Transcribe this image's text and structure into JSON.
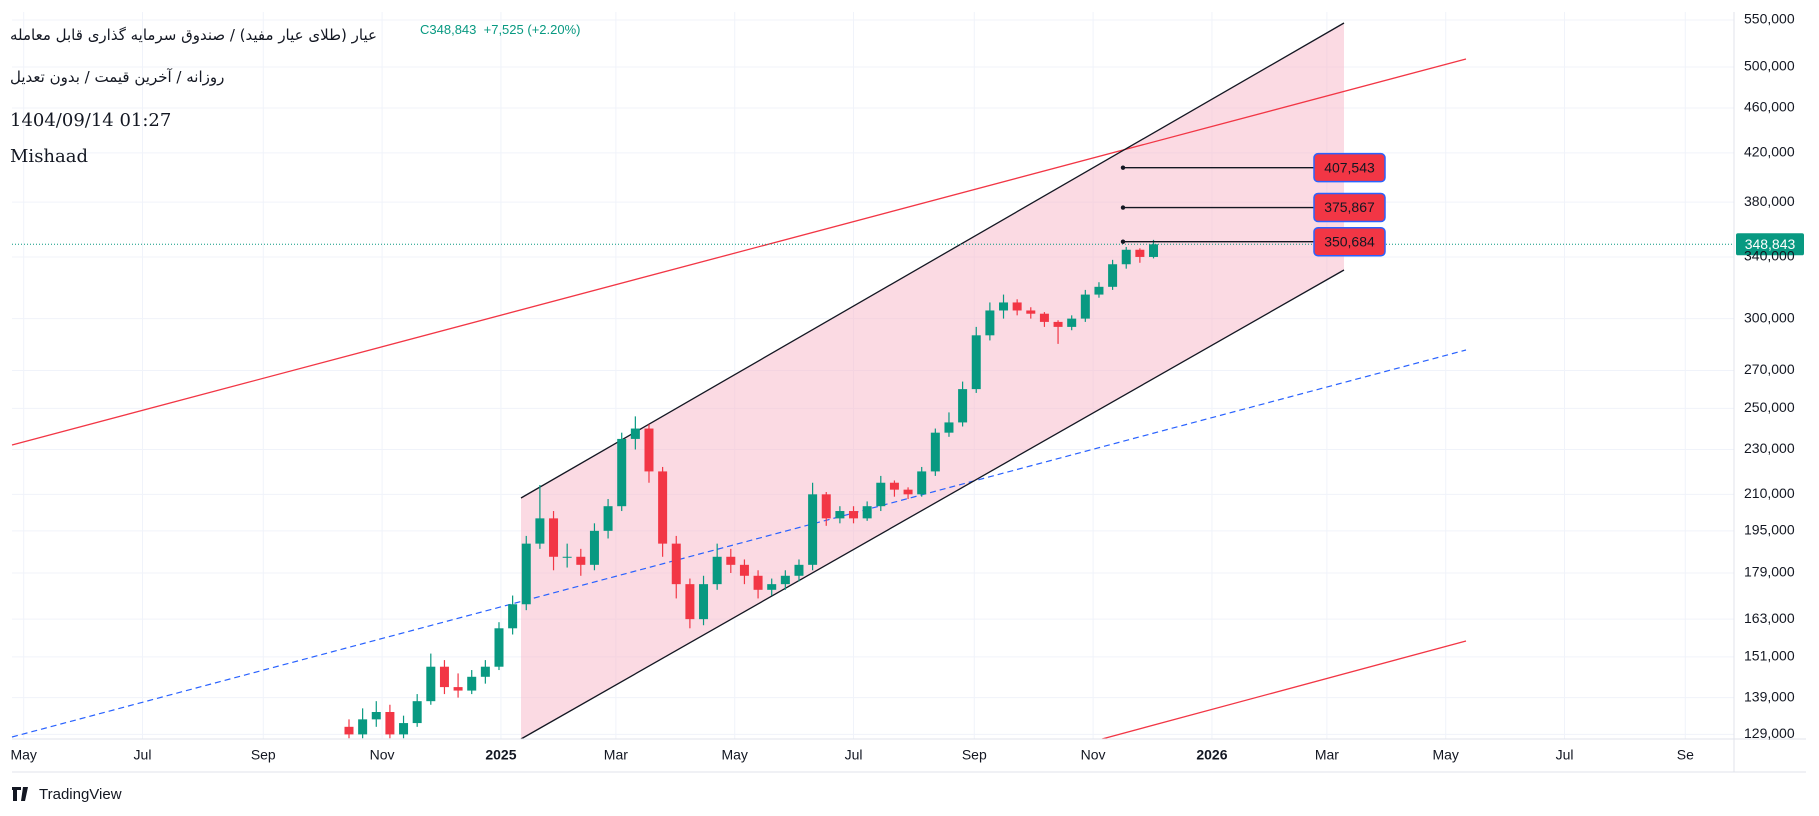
{
  "header": {
    "title": "عیار (طلای عیار مفید) / صندوق سرمایه گذاری قابل معامله",
    "close": "C348,843",
    "change": "+7,525 (+2.20%)",
    "settings": "روزانه / آخرین قیمت / بدون تعدیل",
    "timestamp": "1404/09/14 01:27",
    "author": "Mishaad"
  },
  "chart_data": {
    "type": "candlestick",
    "x": [
      167,
      174,
      181,
      188,
      195,
      202,
      209,
      216,
      223,
      230,
      237,
      244,
      251,
      258,
      265,
      272,
      279,
      286,
      293,
      300,
      307,
      314,
      321,
      328,
      335,
      342,
      349,
      356,
      363,
      370,
      377,
      384,
      391,
      398,
      405,
      412,
      419,
      426,
      433,
      440,
      447,
      454,
      461,
      468,
      475,
      482,
      489,
      496,
      503,
      510,
      517,
      524,
      531,
      538,
      545,
      552,
      559,
      566,
      573,
      580
    ],
    "open": [
      131000,
      129000,
      133000,
      135000,
      129000,
      132000,
      138000,
      148000,
      142000,
      141000,
      145000,
      148000,
      160000,
      168000,
      190000,
      200000,
      185000,
      185000,
      182000,
      195000,
      205000,
      235000,
      240000,
      220000,
      190000,
      175000,
      163000,
      175000,
      185000,
      182000,
      178000,
      173000,
      175000,
      178000,
      182000,
      210000,
      200000,
      203000,
      200000,
      205000,
      215000,
      212000,
      210000,
      220000,
      238000,
      243000,
      260000,
      290000,
      305000,
      310000,
      305000,
      303000,
      298000,
      295000,
      300000,
      315000,
      320000,
      335000,
      345000,
      340000
    ],
    "high": [
      133000,
      136000,
      138000,
      137000,
      134000,
      140000,
      152000,
      150000,
      146000,
      147000,
      150000,
      162000,
      171000,
      193000,
      214000,
      203000,
      190000,
      188000,
      198000,
      208000,
      238000,
      246000,
      242000,
      222000,
      193000,
      177000,
      178000,
      190000,
      188000,
      184000,
      180000,
      177000,
      180000,
      184000,
      215000,
      211000,
      205000,
      205000,
      207000,
      218000,
      216000,
      213000,
      222000,
      240000,
      248000,
      264000,
      295000,
      310000,
      315000,
      312000,
      307000,
      304000,
      299000,
      302000,
      318000,
      323000,
      338000,
      347000,
      346000,
      352000
    ],
    "low": [
      128000,
      128000,
      131000,
      128000,
      128000,
      131000,
      137000,
      140000,
      139000,
      140000,
      143000,
      147000,
      158000,
      166000,
      188000,
      180000,
      181000,
      178000,
      180000,
      192000,
      203000,
      230000,
      215000,
      185000,
      170000,
      160000,
      161000,
      173000,
      179000,
      175000,
      170000,
      171000,
      173000,
      176000,
      180000,
      197000,
      198000,
      198000,
      199000,
      203000,
      209000,
      208000,
      209000,
      218000,
      236000,
      241000,
      258000,
      287000,
      300000,
      302000,
      300000,
      295000,
      285000,
      293000,
      298000,
      313000,
      318000,
      332000,
      336000,
      339000
    ],
    "close": [
      129000,
      133000,
      135000,
      129000,
      132000,
      138000,
      148000,
      142000,
      141000,
      145000,
      148000,
      160000,
      168000,
      190000,
      200000,
      185000,
      185000,
      182000,
      195000,
      205000,
      235000,
      240000,
      220000,
      190000,
      175000,
      163000,
      175000,
      185000,
      182000,
      178000,
      173000,
      175000,
      178000,
      182000,
      210000,
      200000,
      203000,
      200000,
      205000,
      215000,
      212000,
      210000,
      220000,
      238000,
      243000,
      260000,
      290000,
      305000,
      310000,
      305000,
      303000,
      298000,
      295000,
      300000,
      315000,
      320000,
      335000,
      345000,
      340000,
      348843
    ],
    "up_color": "#089981",
    "down_color": "#f23645",
    "xlim": [
      -6,
      878
    ],
    "xticks": [
      {
        "value": 0,
        "label": "May"
      },
      {
        "value": 61,
        "label": "Jul"
      },
      {
        "value": 123,
        "label": "Sep"
      },
      {
        "value": 184,
        "label": "Nov"
      },
      {
        "value": 245,
        "label": "2025"
      },
      {
        "value": 304,
        "label": "Mar"
      },
      {
        "value": 365,
        "label": "May"
      },
      {
        "value": 426,
        "label": "Jul"
      },
      {
        "value": 488,
        "label": "Sep"
      },
      {
        "value": 549,
        "label": "Nov"
      },
      {
        "value": 610,
        "label": "2026"
      },
      {
        "value": 669,
        "label": "Mar"
      },
      {
        "value": 730,
        "label": "May"
      },
      {
        "value": 791,
        "label": "Jul"
      },
      {
        "value": 853,
        "label": "Se"
      }
    ],
    "ylim": [
      127800,
      559000
    ],
    "log_scale": true,
    "grid": true,
    "yticks": [
      {
        "value": 129000,
        "label": "129,000"
      },
      {
        "value": 139000,
        "label": "139,000"
      },
      {
        "value": 151000,
        "label": "151,000"
      },
      {
        "value": 163000,
        "label": "163,000"
      },
      {
        "value": 179000,
        "label": "179,000"
      },
      {
        "value": 195000,
        "label": "195,000"
      },
      {
        "value": 210000,
        "label": "210,000"
      },
      {
        "value": 230000,
        "label": "230,000"
      },
      {
        "value": 250000,
        "label": "250,000"
      },
      {
        "value": 270000,
        "label": "270,000"
      },
      {
        "value": 300000,
        "label": "300,000"
      },
      {
        "value": 340000,
        "label": "340,000"
      },
      {
        "value": 380000,
        "label": "380,000"
      },
      {
        "value": 420000,
        "label": "420,000"
      },
      {
        "value": 460000,
        "label": "460,000"
      },
      {
        "value": 500000,
        "label": "500,000"
      },
      {
        "value": 550000,
        "label": "550,000"
      }
    ],
    "last_price": {
      "value": 348843,
      "label": "348,843",
      "color": "#089981"
    },
    "annotations": [
      {
        "value": 407543,
        "label": "407,543"
      },
      {
        "value": 375867,
        "label": "375,867"
      },
      {
        "value": 350684,
        "label": "350,684"
      }
    ]
  },
  "footer": {
    "brand": "TradingView"
  }
}
